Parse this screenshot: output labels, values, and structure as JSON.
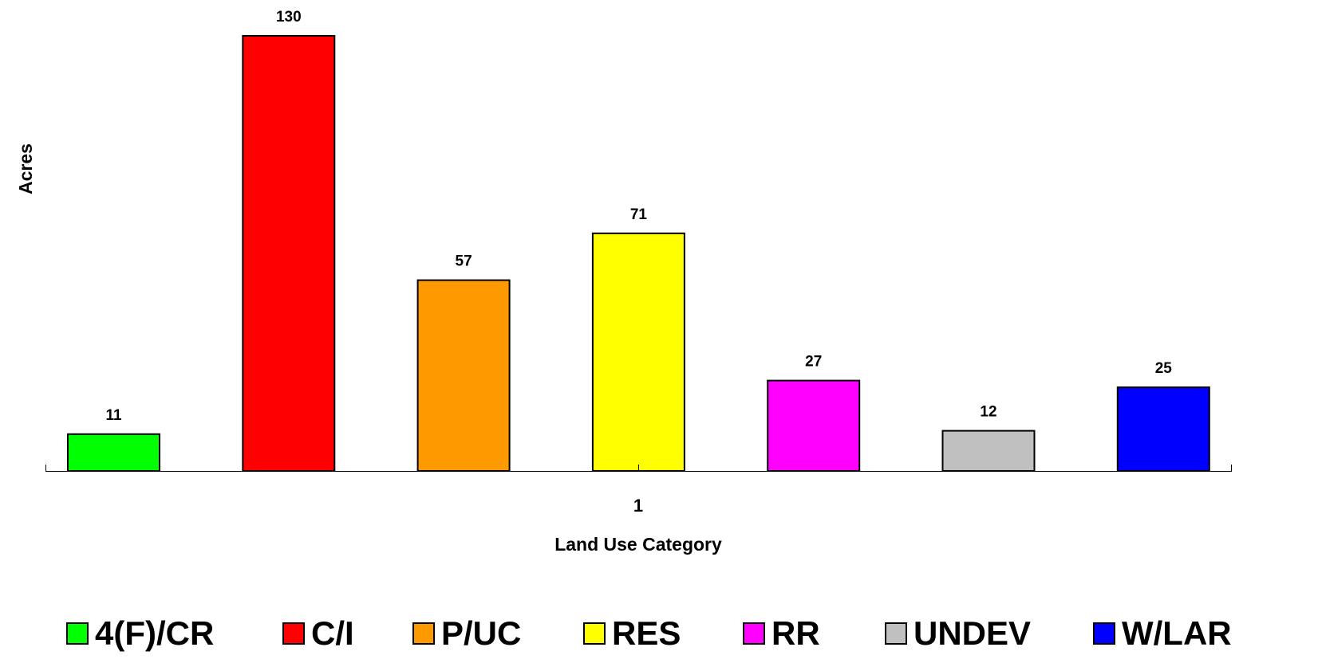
{
  "chart_data": {
    "type": "bar",
    "categories": [
      "1"
    ],
    "series": [
      {
        "name": "4(F)/CR",
        "values": [
          11
        ],
        "color": "#00ff00"
      },
      {
        "name": "C/I",
        "values": [
          130
        ],
        "color": "#ff0000"
      },
      {
        "name": "P/UC",
        "values": [
          57
        ],
        "color": "#ff9900"
      },
      {
        "name": "RES",
        "values": [
          71
        ],
        "color": "#ffff00"
      },
      {
        "name": "RR",
        "values": [
          27
        ],
        "color": "#ff00ff"
      },
      {
        "name": "UNDEV",
        "values": [
          12
        ],
        "color": "#c0c0c0"
      },
      {
        "name": "W/LAR",
        "values": [
          25
        ],
        "color": "#0000ff"
      }
    ],
    "title": "",
    "xlabel": "Land Use Category",
    "ylabel": "Acres",
    "ylim": [
      0,
      130
    ],
    "grid": false,
    "legend_position": "bottom",
    "data_labels": true
  }
}
